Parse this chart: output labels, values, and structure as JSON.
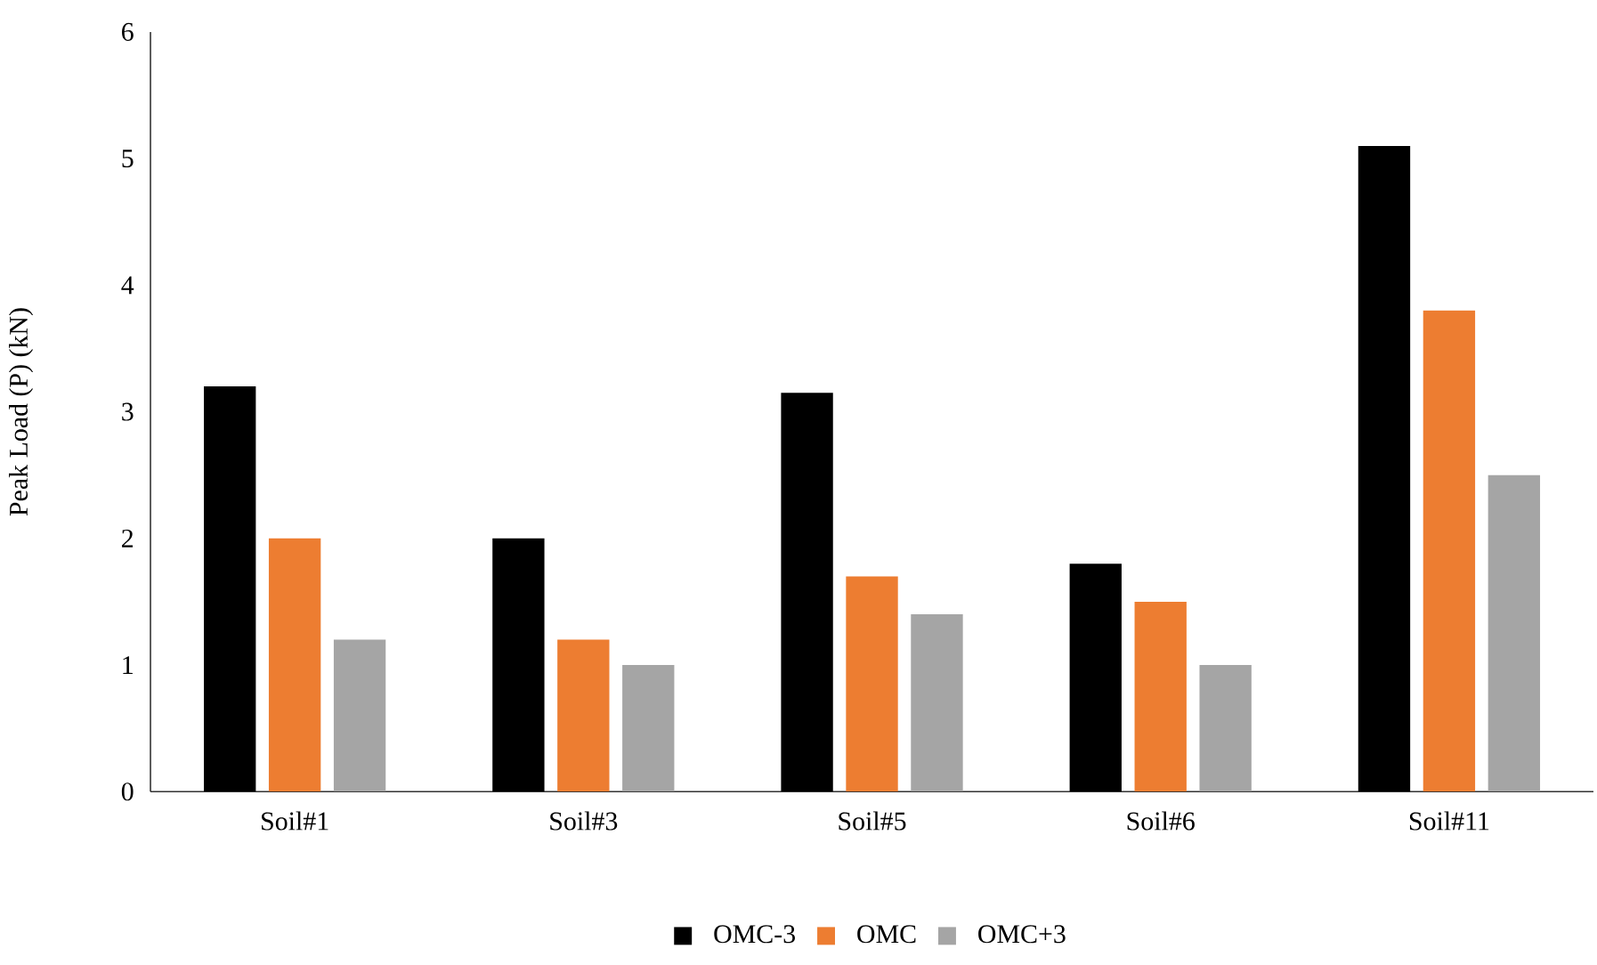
{
  "chart_data": {
    "type": "bar",
    "ylabel": "Peak Load (P) (kN)",
    "categories": [
      "Soil#1",
      "Soil#3",
      "Soil#5",
      "Soil#6",
      "Soil#11"
    ],
    "series": [
      {
        "name": "OMC-3",
        "color": "#000000",
        "values": [
          3.2,
          2.0,
          3.15,
          1.8,
          5.1
        ]
      },
      {
        "name": "OMC",
        "color": "#ed7d31",
        "values": [
          2.0,
          1.2,
          1.7,
          1.5,
          3.8
        ]
      },
      {
        "name": "OMC+3",
        "color": "#a5a5a5",
        "values": [
          1.2,
          1.0,
          1.4,
          1.0,
          2.5
        ]
      }
    ],
    "ylim": [
      0,
      6
    ],
    "yticks": [
      0,
      1,
      2,
      3,
      4,
      5,
      6
    ],
    "legend": "bottom"
  }
}
